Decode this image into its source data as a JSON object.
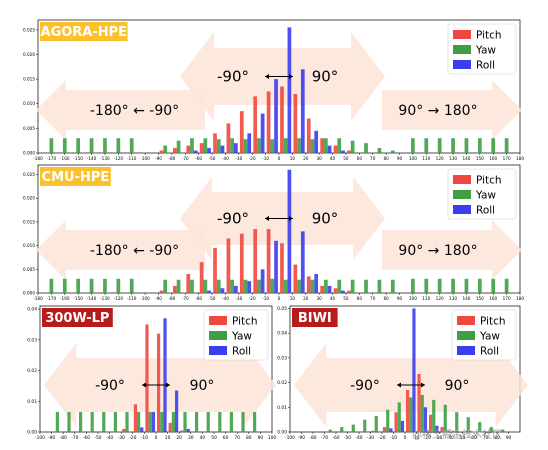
{
  "colors": {
    "pitch": "#f0483e",
    "yaw": "#3e9f45",
    "roll": "#3b3df0",
    "arrow_fill": "#fde4d8",
    "badge_yellow": "#fbc12c",
    "badge_red": "#b81b1b"
  },
  "watermark": "@稀土掘金技术社区",
  "chart_data": [
    {
      "id": "agora",
      "type": "bar",
      "title": "AGORA-HPE",
      "badge_color": "yellow",
      "legend": [
        "Pitch",
        "Yaw",
        "Roll"
      ],
      "legend_position": "top-right",
      "xlim": [
        -180,
        180
      ],
      "ylim": [
        0,
        0.027
      ],
      "bin_width": 10,
      "xticks": [
        "-180",
        "-170",
        "-160",
        "-150",
        "-140",
        "-130",
        "-120",
        "-110",
        "-100",
        "-90",
        "-80",
        "-70",
        "-60",
        "-50",
        "-40",
        "-30",
        "-20",
        "-10",
        "0",
        "10",
        "20",
        "30",
        "40",
        "50",
        "60",
        "70",
        "80",
        "90",
        "100",
        "110",
        "120",
        "130",
        "140",
        "150",
        "160",
        "170",
        "180"
      ],
      "yticks": [
        "0.000",
        "0.005",
        "0.010",
        "0.015",
        "0.020",
        "0.025"
      ],
      "annotations": {
        "inner_left": "-90°",
        "inner_right": "90°",
        "outer_left": "-180° ← -90°",
        "outer_right": "90° → 180°"
      },
      "bins_x": [
        -90,
        -80,
        -70,
        -60,
        -50,
        -40,
        -30,
        -20,
        -10,
        0,
        10,
        20,
        30,
        40,
        50,
        60,
        70,
        80
      ],
      "series": [
        {
          "name": "Pitch",
          "values": [
            0.0005,
            0.001,
            0.0015,
            0.002,
            0.004,
            0.006,
            0.0085,
            0.0115,
            0.0125,
            0.0135,
            0.012,
            0.007,
            0.003,
            0.0015,
            0.0005,
            0,
            0,
            0
          ]
        },
        {
          "name": "Yaw",
          "values": [
            0.0015,
            0.0025,
            0.003,
            0.003,
            0.0028,
            0.003,
            0.0028,
            0.003,
            0.0028,
            0.003,
            0.003,
            0.0028,
            0.003,
            0.003,
            0.0025,
            0.002,
            0.001,
            0.0005
          ]
        },
        {
          "name": "Roll",
          "values": [
            0,
            0,
            0.0005,
            0.001,
            0.0015,
            0.002,
            0.004,
            0.008,
            0.015,
            0.0255,
            0.017,
            0.0045,
            0.0015,
            0.0005,
            0,
            0,
            0,
            0
          ]
        }
      ],
      "yaw_outer": {
        "x": [
          -170,
          -160,
          -150,
          -140,
          -130,
          -120,
          -110,
          100,
          110,
          120,
          130,
          140,
          150,
          160,
          170
        ],
        "values": [
          0.003,
          0.003,
          0.003,
          0.003,
          0.003,
          0.003,
          0.003,
          0.003,
          0.003,
          0.003,
          0.003,
          0.003,
          0.003,
          0.003,
          0.003
        ]
      }
    },
    {
      "id": "cmu",
      "type": "bar",
      "title": "CMU-HPE",
      "badge_color": "yellow",
      "legend": [
        "Pitch",
        "Yaw",
        "Roll"
      ],
      "legend_position": "top-right",
      "xlim": [
        -180,
        180
      ],
      "ylim": [
        0,
        0.027
      ],
      "bin_width": 10,
      "xticks": [
        "-180",
        "-170",
        "-160",
        "-150",
        "-140",
        "-130",
        "-120",
        "-110",
        "-100",
        "-90",
        "-80",
        "-70",
        "-60",
        "-50",
        "-40",
        "-30",
        "-20",
        "-10",
        "0",
        "10",
        "20",
        "30",
        "40",
        "50",
        "60",
        "70",
        "80",
        "90",
        "100",
        "110",
        "120",
        "130",
        "140",
        "150",
        "160",
        "170",
        "180"
      ],
      "yticks": [
        "0.000",
        "0.005",
        "0.010",
        "0.015",
        "0.020",
        "0.025"
      ],
      "annotations": {
        "inner_left": "-90°",
        "inner_right": "90°",
        "outer_left": "-180° ← -90°",
        "outer_right": "90° → 180°"
      },
      "bins_x": [
        -90,
        -80,
        -70,
        -60,
        -50,
        -40,
        -30,
        -20,
        -10,
        0,
        10,
        20,
        30,
        40,
        50,
        60,
        70,
        80
      ],
      "series": [
        {
          "name": "Pitch",
          "values": [
            0.0005,
            0.0015,
            0.004,
            0.0065,
            0.0095,
            0.0115,
            0.0125,
            0.0135,
            0.0135,
            0.0105,
            0.006,
            0.0035,
            0.0015,
            0.001,
            0.0005,
            0,
            0,
            0
          ]
        },
        {
          "name": "Yaw",
          "values": [
            0.0028,
            0.0028,
            0.0028,
            0.0028,
            0.0028,
            0.0028,
            0.0028,
            0.0028,
            0.003,
            0.0028,
            0.0028,
            0.0028,
            0.0028,
            0.0028,
            0.0028,
            0.0028,
            0.0028,
            0.0028
          ]
        },
        {
          "name": "Roll",
          "values": [
            0,
            0,
            0,
            0.0005,
            0.001,
            0.0015,
            0.0025,
            0.005,
            0.011,
            0.026,
            0.013,
            0.004,
            0.0015,
            0.0005,
            0,
            0,
            0,
            0
          ]
        }
      ],
      "yaw_outer": {
        "x": [
          -170,
          -160,
          -150,
          -140,
          -130,
          -120,
          -110,
          100,
          110,
          120,
          130,
          140,
          150,
          160,
          170
        ],
        "values": [
          0.003,
          0.003,
          0.003,
          0.003,
          0.003,
          0.003,
          0.003,
          0.003,
          0.003,
          0.003,
          0.003,
          0.003,
          0.003,
          0.003,
          0.003
        ]
      }
    },
    {
      "id": "w300",
      "type": "bar",
      "title": "300W-LP",
      "badge_color": "red",
      "legend": [
        "Pitch",
        "Yaw",
        "Roll"
      ],
      "legend_position": "top-right",
      "xlim": [
        -100,
        100
      ],
      "ylim": [
        0,
        0.041
      ],
      "bin_width": 10,
      "xticks": [
        "-100",
        "-90",
        "-80",
        "-70",
        "-60",
        "-50",
        "-40",
        "-30",
        "-20",
        "-10",
        "0",
        "10",
        "20",
        "30",
        "40",
        "50",
        "60",
        "70",
        "80",
        "90",
        "100"
      ],
      "yticks": [
        "0.00",
        "0.01",
        "0.02",
        "0.03",
        "0.04"
      ],
      "annotations": {
        "inner_left": "-90°",
        "inner_right": "90°"
      },
      "bins_x": [
        -90,
        -80,
        -70,
        -60,
        -50,
        -40,
        -30,
        -20,
        -10,
        0,
        10,
        20,
        30,
        40,
        50,
        60,
        70,
        80
      ],
      "series": [
        {
          "name": "Pitch",
          "values": [
            0,
            0,
            0,
            0,
            0,
            0,
            0.001,
            0.009,
            0.035,
            0.032,
            0.003,
            0.0005,
            0,
            0,
            0,
            0,
            0,
            0
          ]
        },
        {
          "name": "Yaw",
          "values": [
            0.0065,
            0.0065,
            0.0065,
            0.0065,
            0.0065,
            0.0065,
            0.0065,
            0.0065,
            0.0065,
            0.0065,
            0.0065,
            0.0065,
            0.0065,
            0.0065,
            0.0065,
            0.0065,
            0.0065,
            0.0065
          ]
        },
        {
          "name": "Roll",
          "values": [
            0,
            0,
            0,
            0,
            0,
            0,
            0,
            0.0015,
            0.0065,
            0.037,
            0.0135,
            0.001,
            0,
            0,
            0,
            0,
            0,
            0
          ]
        }
      ]
    },
    {
      "id": "biwi",
      "type": "bar",
      "title": "BIWI",
      "badge_color": "red",
      "legend": [
        "Pitch",
        "Yaw",
        "Roll"
      ],
      "legend_position": "top-right",
      "xlim": [
        -100,
        100
      ],
      "ylim": [
        0,
        0.051
      ],
      "bin_width": 10,
      "xticks": [
        "-100",
        "-90",
        "-80",
        "-70",
        "-60",
        "-50",
        "-40",
        "-30",
        "-20",
        "-10",
        "0",
        "10",
        "20",
        "30",
        "40",
        "50",
        "60",
        "70",
        "80",
        "90"
      ],
      "yticks": [
        "0.00",
        "0.01",
        "0.02",
        "0.03",
        "0.04",
        "0.05"
      ],
      "annotations": {
        "inner_left": "-90°",
        "inner_right": "90°"
      },
      "bins_x": [
        -90,
        -80,
        -70,
        -60,
        -50,
        -40,
        -30,
        -20,
        -10,
        0,
        10,
        20,
        30,
        40,
        50,
        60,
        70,
        80
      ],
      "series": [
        {
          "name": "Pitch",
          "values": [
            0,
            0,
            0,
            0,
            0,
            0,
            0.0005,
            0.002,
            0.008,
            0.017,
            0.0235,
            0.007,
            0.002,
            0.0005,
            0,
            0,
            0,
            0
          ]
        },
        {
          "name": "Yaw",
          "values": [
            0,
            0,
            0.001,
            0.002,
            0.003,
            0.005,
            0.0065,
            0.009,
            0.012,
            0.014,
            0.015,
            0.013,
            0.011,
            0.008,
            0.006,
            0.004,
            0.002,
            0.001
          ]
        },
        {
          "name": "Roll",
          "values": [
            0,
            0,
            0,
            0,
            0,
            0,
            0,
            0.0015,
            0.0045,
            0.05,
            0.01,
            0.0025,
            0.0005,
            0,
            0,
            0,
            0,
            0
          ]
        }
      ]
    }
  ]
}
